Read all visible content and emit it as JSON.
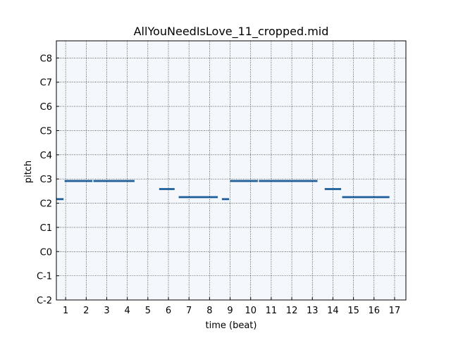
{
  "chart_data": {
    "type": "piano-roll",
    "title": "AllYouNeedIsLove_11_cropped.mid",
    "xlabel": "time (beat)",
    "ylabel": "pitch",
    "xlim": [
      0.55,
      17.55
    ],
    "ylim": [
      0,
      128.5
    ],
    "x_ticks": [
      1,
      2,
      3,
      4,
      5,
      6,
      7,
      8,
      9,
      10,
      11,
      12,
      13,
      14,
      15,
      16,
      17
    ],
    "y_ticks": [
      {
        "value": 0,
        "label": "C-2"
      },
      {
        "value": 12,
        "label": "C-1"
      },
      {
        "value": 24,
        "label": "C0"
      },
      {
        "value": 36,
        "label": "C1"
      },
      {
        "value": 48,
        "label": "C2"
      },
      {
        "value": 60,
        "label": "C3"
      },
      {
        "value": 72,
        "label": "C4"
      },
      {
        "value": 84,
        "label": "C5"
      },
      {
        "value": 96,
        "label": "C6"
      },
      {
        "value": 108,
        "label": "C7"
      },
      {
        "value": 120,
        "label": "C8"
      }
    ],
    "grid": true,
    "background": "#f4f8fd",
    "note_color": "#1f5f99",
    "notes": [
      {
        "start": 0.55,
        "end": 0.9,
        "pitch": 50
      },
      {
        "start": 0.95,
        "end": 2.3,
        "pitch": 59
      },
      {
        "start": 2.35,
        "end": 4.35,
        "pitch": 59
      },
      {
        "start": 5.55,
        "end": 6.3,
        "pitch": 55
      },
      {
        "start": 6.5,
        "end": 8.4,
        "pitch": 51
      },
      {
        "start": 8.6,
        "end": 8.95,
        "pitch": 50
      },
      {
        "start": 9.0,
        "end": 10.35,
        "pitch": 59
      },
      {
        "start": 10.4,
        "end": 13.25,
        "pitch": 59
      },
      {
        "start": 13.6,
        "end": 14.4,
        "pitch": 55
      },
      {
        "start": 14.45,
        "end": 16.75,
        "pitch": 51
      }
    ]
  }
}
